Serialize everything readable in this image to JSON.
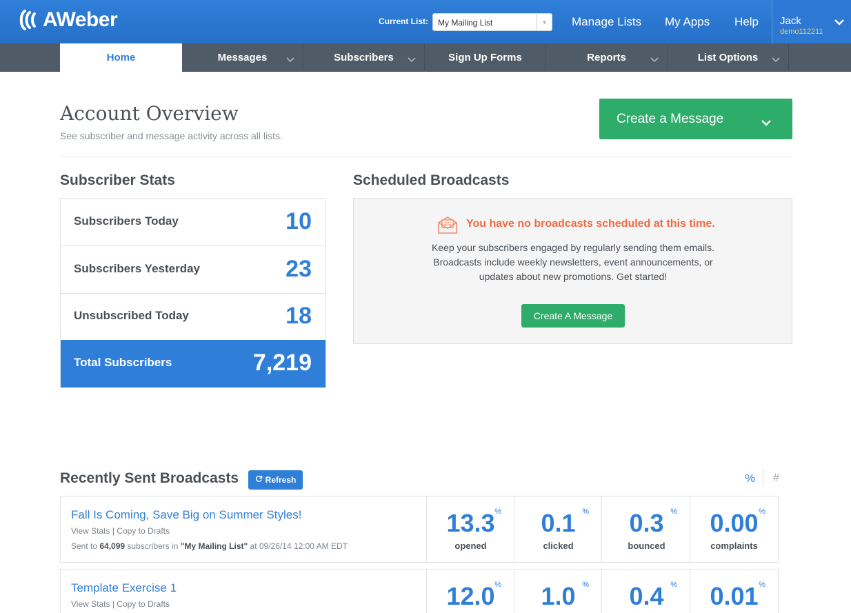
{
  "header": {
    "logo_text": "AWeber",
    "current_list_label": "Current List:",
    "current_list_value": "My Mailing List",
    "nav": [
      "Manage Lists",
      "My Apps",
      "Help"
    ],
    "user_name": "Jack",
    "user_account": "demo112211"
  },
  "tabs": [
    {
      "label": "Home",
      "active": true
    },
    {
      "label": "Messages"
    },
    {
      "label": "Subscribers"
    },
    {
      "label": "Sign Up Forms"
    },
    {
      "label": "Reports"
    },
    {
      "label": "List Options"
    }
  ],
  "overview": {
    "title": "Account Overview",
    "subtitle": "See subscriber and message activity across all lists.",
    "create_button": "Create a Message"
  },
  "subscriber_stats": {
    "title": "Subscriber Stats",
    "rows": [
      {
        "label": "Subscribers Today",
        "value": "10"
      },
      {
        "label": "Subscribers Yesterday",
        "value": "23"
      },
      {
        "label": "Unsubscribed Today",
        "value": "18"
      },
      {
        "label": "Total Subscribers",
        "value": "7,219"
      }
    ]
  },
  "scheduled": {
    "title": "Scheduled Broadcasts",
    "empty_title": "You have no broadcasts scheduled at this time.",
    "empty_body_lines": [
      "Keep your subscribers engaged by regularly sending them emails.",
      "Broadcasts include weekly newsletters, event announcements, or",
      "updates about new promotions. Get started!"
    ],
    "button": "Create A Message"
  },
  "recent": {
    "title": "Recently Sent Broadcasts",
    "refresh_label": "Refresh",
    "toggle_percent": "%",
    "toggle_count": "#",
    "broadcasts": [
      {
        "name": "Fall Is Coming, Save Big on Summer Styles!",
        "view_stats": "View Stats",
        "link_sep": "|",
        "copy_drafts": "Copy to Drafts",
        "sent_prefix": "Sent to",
        "sent_count": "64,099",
        "sent_mid": "subscribers in",
        "sent_list": "\"My Mailing List\"",
        "sent_at": "at 09/26/14 12:00 AM EDT",
        "metrics": [
          {
            "value": "13.3",
            "unit": "%",
            "label": "opened"
          },
          {
            "value": "0.1",
            "unit": "%",
            "label": "clicked"
          },
          {
            "value": "0.3",
            "unit": "%",
            "label": "bounced"
          },
          {
            "value": "0.00",
            "unit": "%",
            "label": "complaints"
          }
        ]
      },
      {
        "name": "Template Exercise 1",
        "view_stats": "View Stats",
        "link_sep": "|",
        "copy_drafts": "Copy to Drafts",
        "metrics": [
          {
            "value": "12.0",
            "unit": "%"
          },
          {
            "value": "1.0",
            "unit": "%"
          },
          {
            "value": "0.4",
            "unit": "%"
          },
          {
            "value": "0.01",
            "unit": "%"
          }
        ]
      }
    ]
  },
  "colors": {
    "brand_blue": "#2f7fd8",
    "nav_dark": "#4f5b66",
    "action_green": "#2eac6a",
    "alert_orange": "#ee6b43",
    "account_yellow": "#f5d24a"
  }
}
